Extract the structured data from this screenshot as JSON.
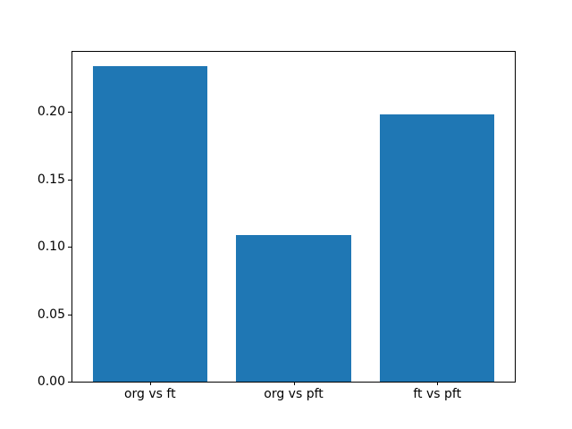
{
  "figure": {
    "background": "#ffffff",
    "title": ""
  },
  "chart_data": {
    "type": "bar",
    "categories": [
      "org vs ft",
      "org vs pft",
      "ft vs pft"
    ],
    "values": [
      0.234,
      0.109,
      0.198
    ],
    "title": "",
    "xlabel": "",
    "ylabel": "",
    "ylim": [
      0,
      0.2447
    ],
    "yticks": [
      0.0,
      0.05,
      0.1,
      0.15,
      0.2
    ],
    "ytick_labels": [
      "0.00",
      "0.05",
      "0.10",
      "0.15",
      "0.20"
    ],
    "bar_color": "#1f77b4",
    "axis_color": "#000000",
    "bar_width_fraction": 0.8,
    "grid": false,
    "legend": null
  }
}
